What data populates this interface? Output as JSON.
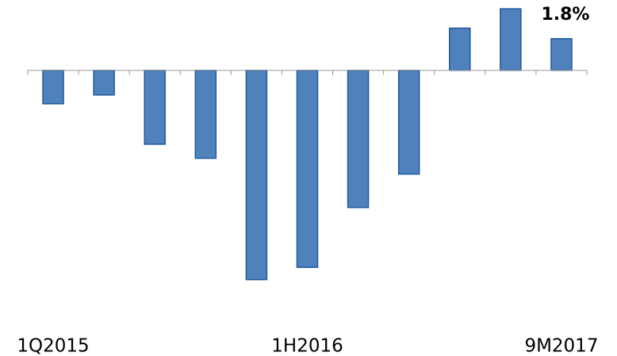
{
  "chart_data": {
    "type": "bar",
    "categories": [
      "1Q2015",
      null,
      null,
      null,
      null,
      "1H2016",
      null,
      null,
      null,
      null,
      "9M2017"
    ],
    "values": [
      -1.9,
      -1.4,
      -4.2,
      -5.0,
      -11.9,
      -11.2,
      -7.8,
      -5.9,
      2.4,
      3.5,
      1.8
    ],
    "value_labels": [
      null,
      null,
      null,
      null,
      null,
      null,
      null,
      null,
      null,
      null,
      "1.8%"
    ],
    "color": "#4f81bd",
    "ylim": [
      -12.5,
      4
    ]
  }
}
